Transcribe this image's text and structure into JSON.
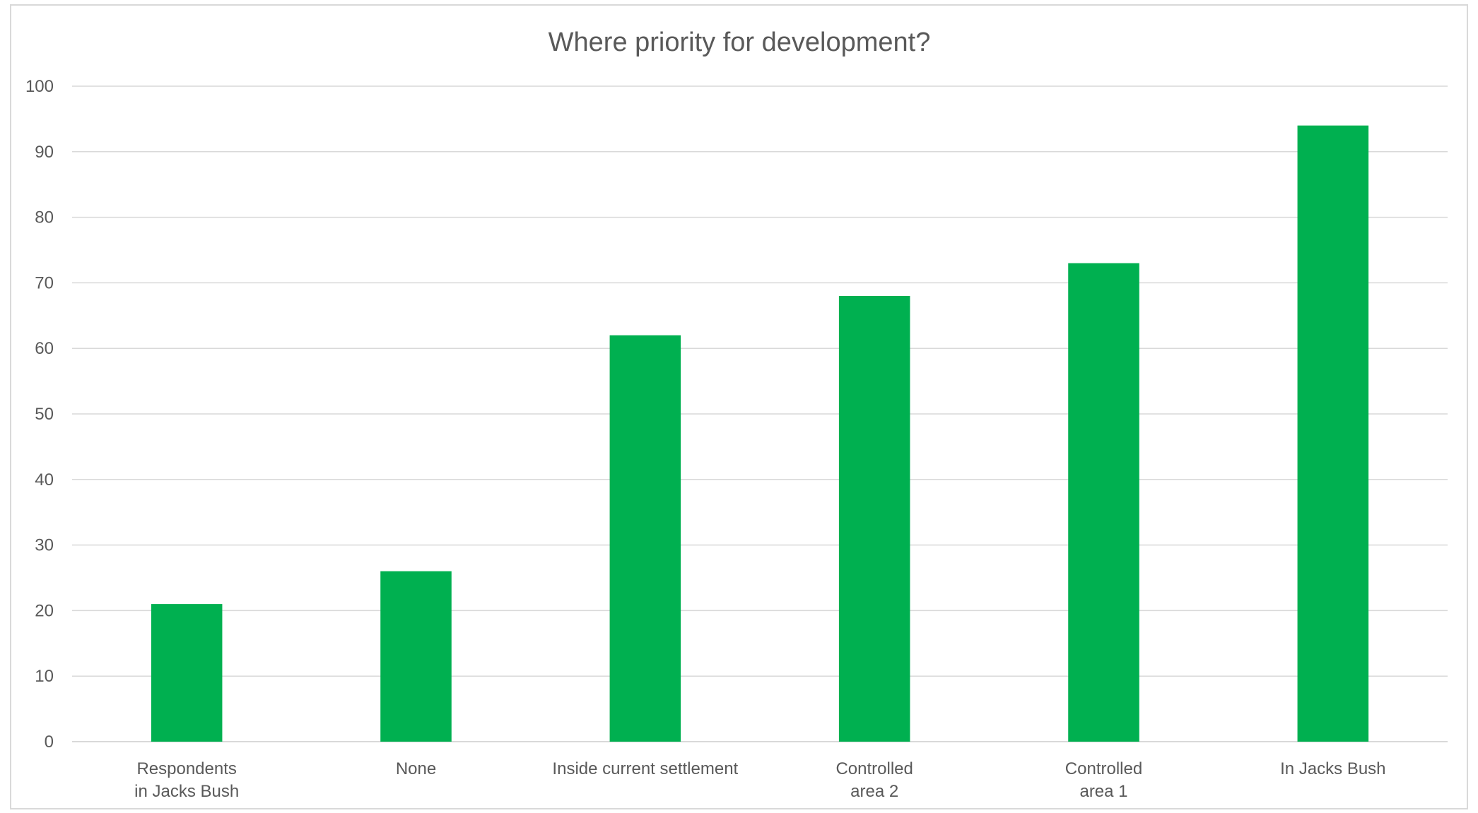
{
  "chart_data": {
    "type": "bar",
    "title": "Where priority for development?",
    "xlabel": "",
    "ylabel": "",
    "categories": [
      [
        "Respondents",
        "in Jacks Bush"
      ],
      [
        "None"
      ],
      [
        "Inside current settlement"
      ],
      [
        "Controlled",
        "area 2"
      ],
      [
        "Controlled",
        "area 1"
      ],
      [
        "In Jacks Bush"
      ]
    ],
    "values": [
      21,
      26,
      62,
      68,
      73,
      94
    ],
    "ylim": [
      0,
      100
    ],
    "yticks": [
      0,
      10,
      20,
      30,
      40,
      50,
      60,
      70,
      80,
      90,
      100
    ],
    "grid": true,
    "legend": "none",
    "colors": {
      "bar": "#00b050",
      "grid": "#d9d9d9",
      "text": "#595959",
      "frame": "#d9d9d9"
    }
  }
}
